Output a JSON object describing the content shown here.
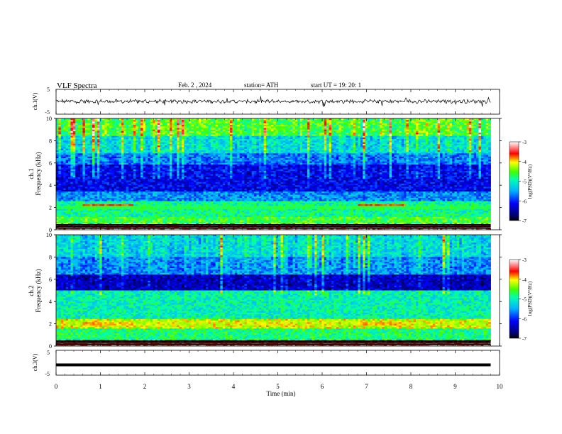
{
  "header": {
    "title": "VLF  Spectra",
    "date": "Feb. 2  , 2024",
    "station": "station= ATH",
    "start": "start  UT  =    19: 20: 1"
  },
  "chart_data": [
    {
      "type": "line",
      "panel": "ch1-waveform",
      "ylabel": "ch.1(V)",
      "ylim": [
        -5,
        5
      ],
      "yticks": [
        "5",
        "-5"
      ],
      "xlim": [
        0,
        10
      ],
      "description_values": "noisy waveform centred near 0 V, amplitude roughly ±1 V with occasional spikes to ±2 V",
      "color": "#000000"
    },
    {
      "type": "heatmap",
      "panel": "ch1-spectrogram",
      "ylabel": "ch.1\nFrequency  (kHz)",
      "ylabel_line1": "ch.1",
      "ylabel_line2": "Frequency  (kHz)",
      "ylim": [
        0,
        10
      ],
      "yticks": [
        "0",
        "2",
        "4",
        "6",
        "8",
        "10"
      ],
      "xlim": [
        0,
        10
      ],
      "colorbar": {
        "label": "log(PSD)(V²/Hz)",
        "range": [
          -7,
          -3
        ],
        "ticks": [
          "-3",
          "-4",
          "-5",
          "-6",
          "-7"
        ]
      },
      "features": "high power (green/yellow) above ~6 kHz, blue band 3–6 kHz, red narrow-band emission near 2.2 kHz from 0.6–1.8 min and 6.8–7.9 min, strong black/red lines below 1 kHz"
    },
    {
      "type": "heatmap",
      "panel": "ch2-spectrogram",
      "ylabel_line1": "ch.2",
      "ylabel_line2": "Frequency  (kHz)",
      "ylim": [
        0,
        10
      ],
      "yticks": [
        "0",
        "2",
        "4",
        "6",
        "8",
        "10"
      ],
      "xlim": [
        0,
        10
      ],
      "colorbar": {
        "label": "log(PSD)(V²/Hz)",
        "range": [
          -7,
          -3
        ],
        "ticks": [
          "-3",
          "-4",
          "-5",
          "-6",
          "-7"
        ]
      },
      "features": "green/cyan above ~6.5 kHz, dark blue 5–6.5 kHz, cyan/green 1–5 kHz, yellow/red band near 2 kHz"
    },
    {
      "type": "line",
      "panel": "ch3-waveform",
      "ylabel": "ch.3(V)",
      "ylim": [
        -5,
        5
      ],
      "yticks": [
        "5",
        "-5"
      ],
      "xlim": [
        0,
        10
      ],
      "level": -1,
      "color": "#000000"
    }
  ],
  "xaxis": {
    "label": "Time  (min)",
    "ticks": [
      "0",
      "1",
      "2",
      "3",
      "4",
      "5",
      "6",
      "7",
      "8",
      "9",
      "10"
    ],
    "data_end": 9.8
  }
}
